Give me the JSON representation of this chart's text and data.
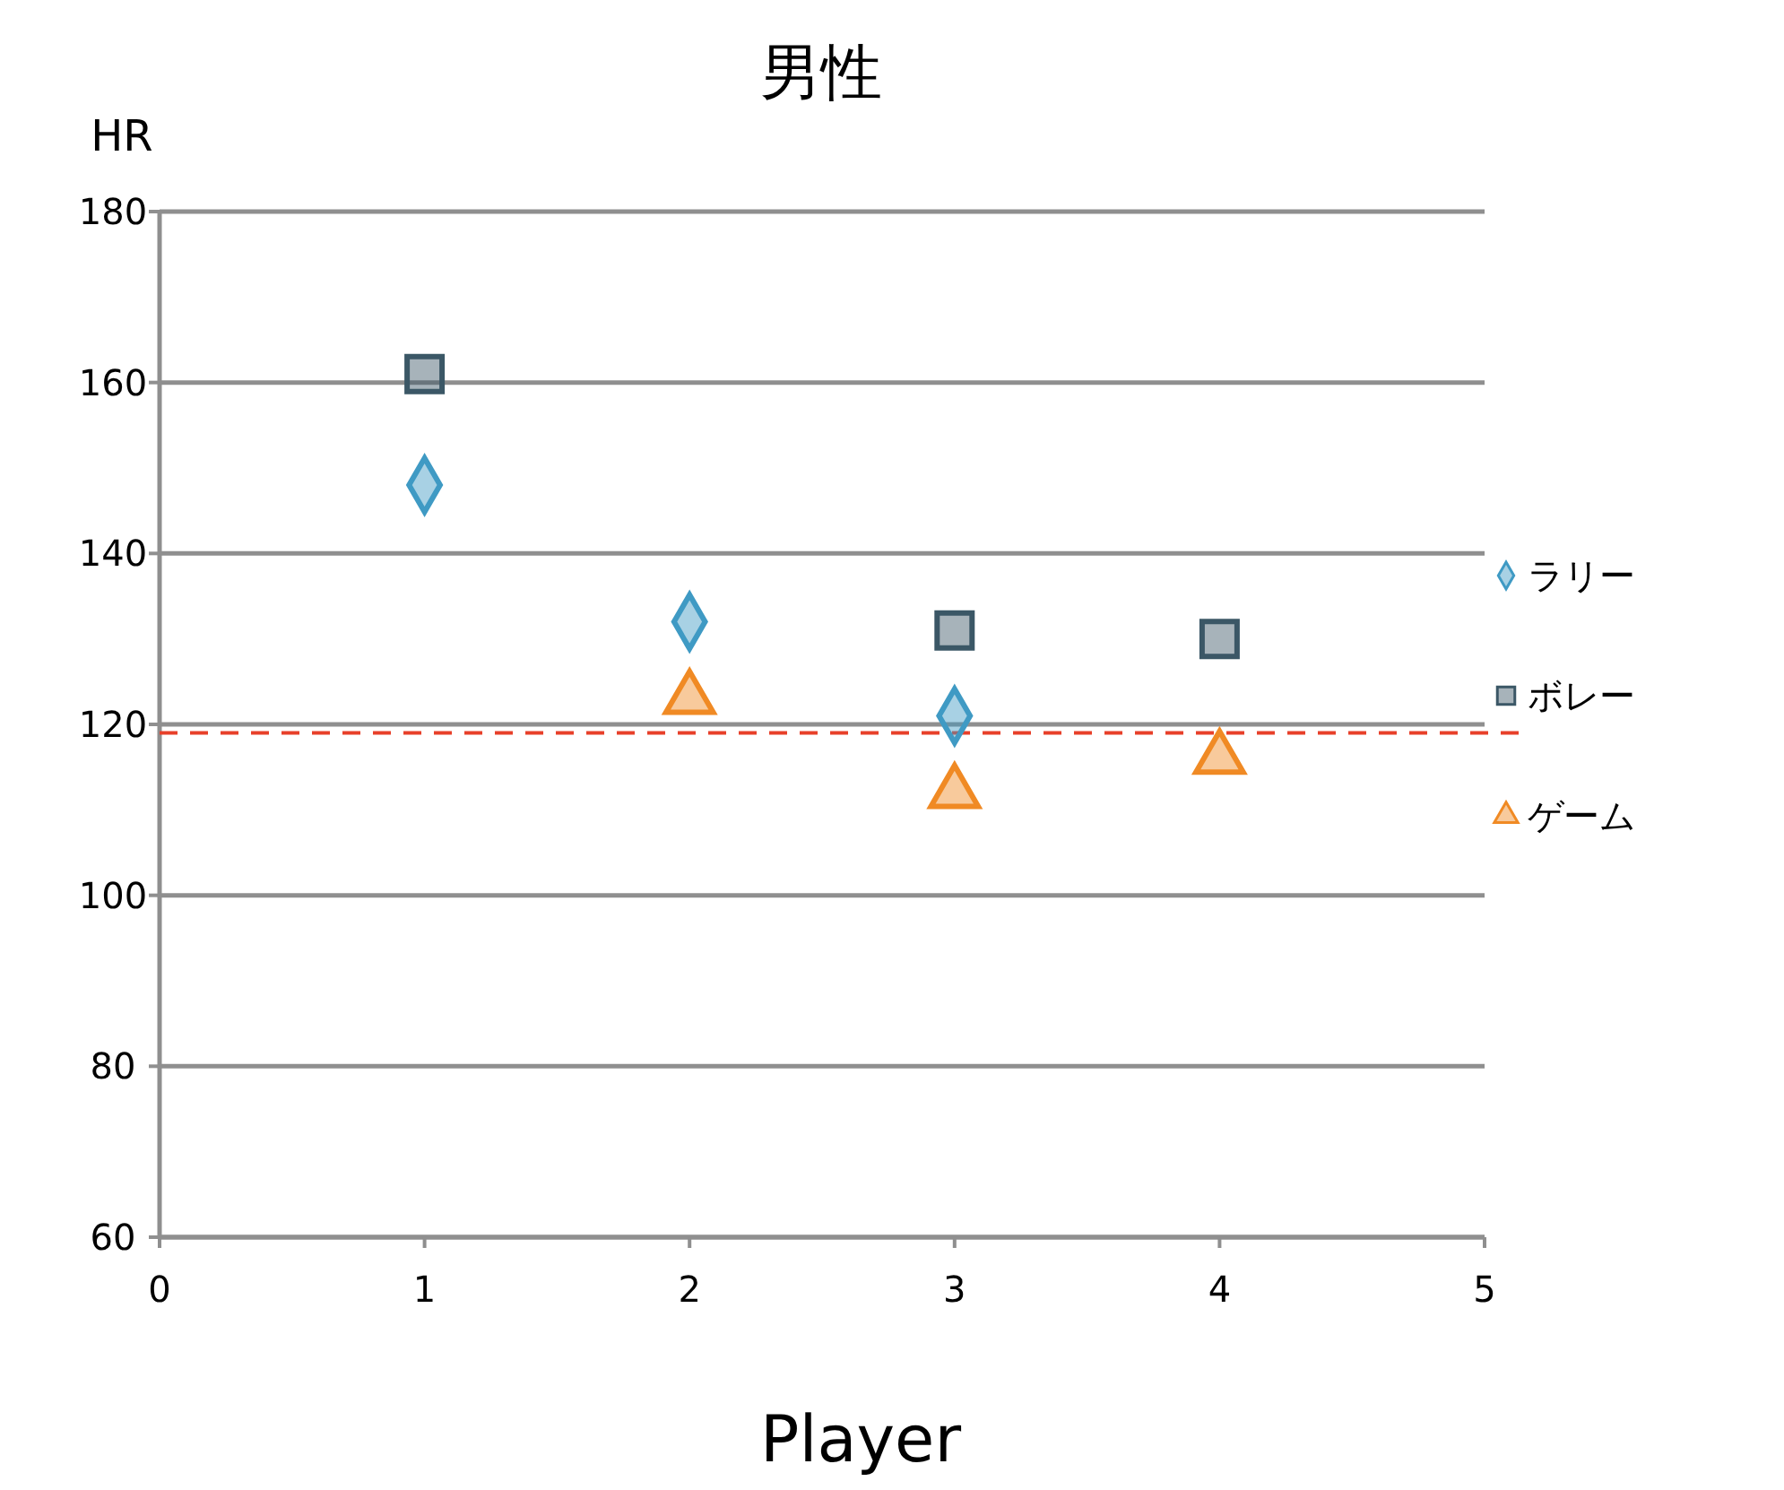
{
  "chart_data": {
    "type": "scatter",
    "title": "男性",
    "xlabel": "Player",
    "ylabel": "HR",
    "x": [
      1,
      2,
      3,
      4
    ],
    "series": [
      {
        "name": "ラリー",
        "color": "#3f9ac4",
        "marker": "diamond",
        "values": [
          148,
          132,
          121,
          null
        ]
      },
      {
        "name": "ボレー",
        "color": "#3b5766",
        "marker": "square",
        "values": [
          161,
          null,
          131,
          130
        ]
      },
      {
        "name": "ゲーム",
        "color": "#f08a24",
        "marker": "triangle",
        "values": [
          null,
          123,
          112,
          116
        ]
      }
    ],
    "xlim": [
      0,
      5
    ],
    "xticks": [
      0,
      1,
      2,
      3,
      4,
      5
    ],
    "ylim": [
      60,
      180
    ],
    "yticks": [
      60,
      80,
      100,
      120,
      140,
      160,
      180
    ],
    "grid": "y",
    "legend": "right",
    "ref_lines": [
      {
        "axis": "y",
        "value": 119,
        "color": "#e8402a",
        "line_style": "dashed"
      }
    ]
  }
}
